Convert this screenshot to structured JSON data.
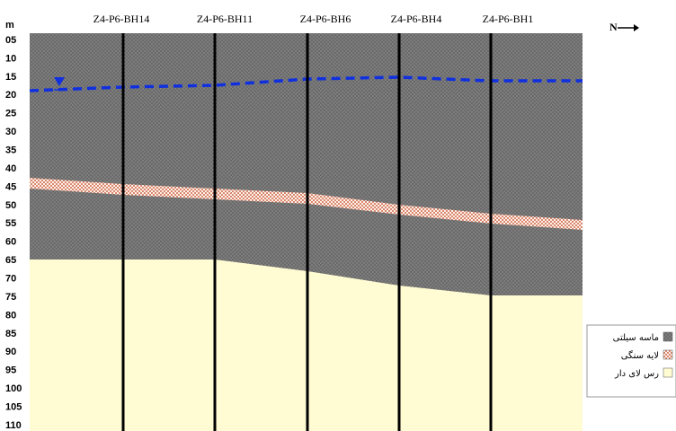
{
  "axis": {
    "unit": "m",
    "depths": [
      "05",
      "10",
      "15",
      "20",
      "25",
      "30",
      "35",
      "40",
      "45",
      "50",
      "55",
      "60",
      "65",
      "70",
      "75",
      "80",
      "85",
      "90",
      "95",
      "100",
      "105",
      "110"
    ]
  },
  "boreholes": [
    "Z4-P6-BH14",
    "Z4-P6-BH11",
    "Z4-P6-BH6",
    "Z4-P6-BH4",
    "Z4-P6-BH1"
  ],
  "north": "N",
  "legend": [
    "ماسه سیلتی",
    "لایه سنگی",
    "رس لای دار"
  ]
}
